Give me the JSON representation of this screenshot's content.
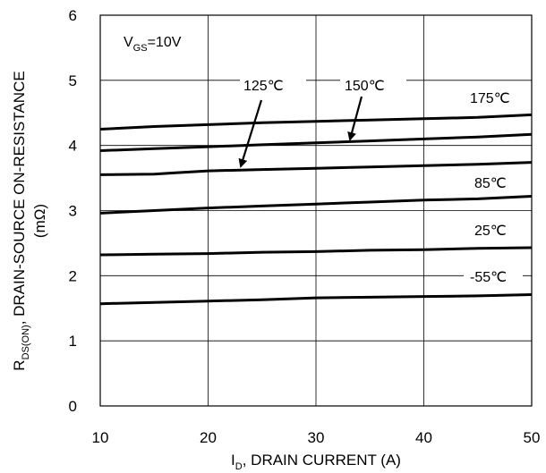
{
  "chart_data": {
    "type": "line",
    "xlabel": "I",
    "xlabel_sub": "D",
    "xlabel_rest": ", DRAIN CURRENT (A)",
    "ylabel_main_R": "R",
    "ylabel_main_sub": "DS(ON)",
    "ylabel_main_rest": ",   DRAIN-SOURCE ON-RESISTANCE",
    "ylabel_unit": "(mΩ)",
    "condition_prefix": "V",
    "condition_sub": "GS",
    "condition_rest": "=10V",
    "xlim": [
      10,
      50
    ],
    "ylim": [
      0,
      6
    ],
    "x_ticks": [
      "10",
      "20",
      "30",
      "40",
      "50"
    ],
    "y_ticks": [
      "0",
      "1",
      "2",
      "3",
      "4",
      "5",
      "6"
    ],
    "grid": true,
    "series": [
      {
        "name": "175℃",
        "x": [
          10,
          15,
          20,
          25,
          30,
          35,
          40,
          45,
          50
        ],
        "values": [
          4.25,
          4.29,
          4.32,
          4.35,
          4.37,
          4.39,
          4.41,
          4.43,
          4.47
        ]
      },
      {
        "name": "150℃",
        "x": [
          10,
          15,
          20,
          25,
          30,
          35,
          40,
          45,
          50
        ],
        "values": [
          3.92,
          3.95,
          3.98,
          4.01,
          4.04,
          4.07,
          4.1,
          4.13,
          4.17
        ]
      },
      {
        "name": "125℃",
        "x": [
          10,
          15,
          17,
          20,
          25,
          30,
          35,
          40,
          45,
          50
        ],
        "values": [
          3.55,
          3.56,
          3.58,
          3.61,
          3.63,
          3.65,
          3.67,
          3.69,
          3.71,
          3.74
        ]
      },
      {
        "name": "85℃",
        "x": [
          10,
          15,
          20,
          25,
          30,
          35,
          40,
          45,
          50
        ],
        "values": [
          2.96,
          3.0,
          3.04,
          3.07,
          3.1,
          3.13,
          3.16,
          3.18,
          3.22
        ]
      },
      {
        "name": "25℃",
        "x": [
          10,
          15,
          20,
          25,
          30,
          35,
          40,
          45,
          50
        ],
        "values": [
          2.32,
          2.33,
          2.34,
          2.36,
          2.37,
          2.39,
          2.4,
          2.42,
          2.43
        ]
      },
      {
        "name": "-55℃",
        "x": [
          10,
          15,
          20,
          25,
          30,
          35,
          40,
          45,
          50
        ],
        "values": [
          1.57,
          1.59,
          1.61,
          1.63,
          1.66,
          1.67,
          1.68,
          1.69,
          1.71
        ]
      }
    ]
  }
}
